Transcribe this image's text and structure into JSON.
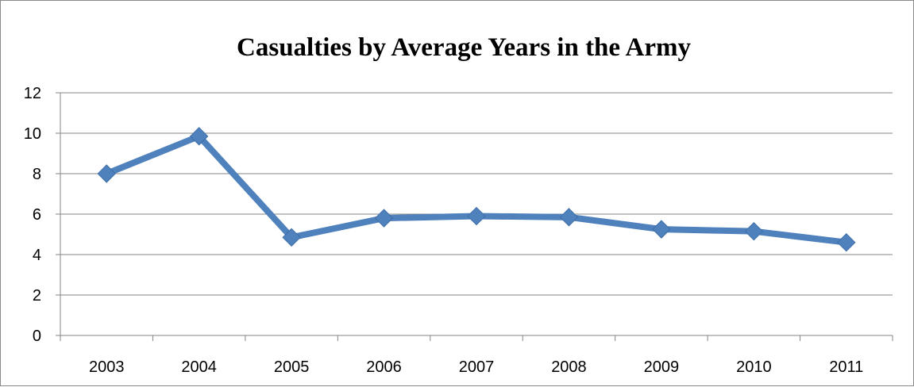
{
  "chart_data": {
    "type": "line",
    "title": "Casualties by Average Years in the Army",
    "xlabel": "",
    "ylabel": "",
    "categories": [
      "2003",
      "2004",
      "2005",
      "2006",
      "2007",
      "2008",
      "2009",
      "2010",
      "2011"
    ],
    "series": [
      {
        "values": [
          8.0,
          9.85,
          4.85,
          5.8,
          5.9,
          5.85,
          5.25,
          5.15,
          4.6
        ],
        "color": "#4f81bd",
        "marker": "diamond"
      }
    ],
    "ylim": [
      0,
      12
    ],
    "yticks": [
      "0",
      "2",
      "4",
      "6",
      "8",
      "10",
      "12"
    ],
    "grid": true,
    "legend": "none"
  }
}
